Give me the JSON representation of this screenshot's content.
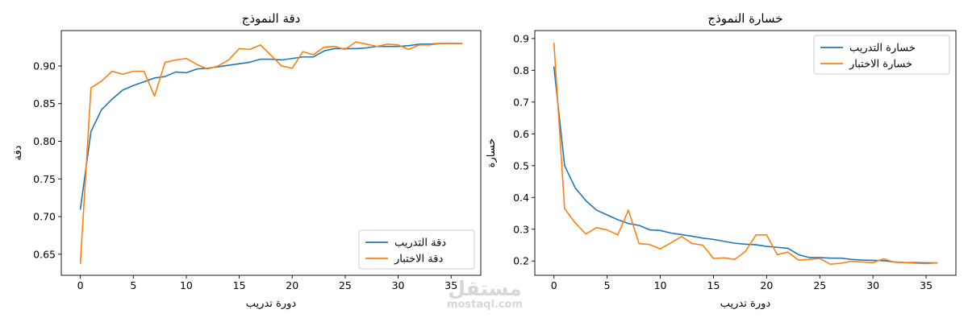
{
  "chart_data": [
    {
      "type": "line",
      "title": "دقة النموذج",
      "xlabel": "دورة تدريب",
      "ylabel": "دقة",
      "xlim": [
        -1.8,
        37.8
      ],
      "ylim": [
        0.622,
        0.947
      ],
      "xticks": [
        0,
        5,
        10,
        15,
        20,
        25,
        30,
        35
      ],
      "yticks": [
        0.65,
        0.7,
        0.75,
        0.8,
        0.85,
        0.9
      ],
      "ytick_labels": [
        "0.65",
        "0.70",
        "0.75",
        "0.80",
        "0.85",
        "0.90"
      ],
      "legend_position": "lower-right",
      "grid": false,
      "x": [
        0,
        1,
        2,
        3,
        4,
        5,
        6,
        7,
        8,
        9,
        10,
        11,
        12,
        13,
        14,
        15,
        16,
        17,
        18,
        19,
        20,
        21,
        22,
        23,
        24,
        25,
        26,
        27,
        28,
        29,
        30,
        31,
        32,
        33,
        34,
        35,
        36
      ],
      "series": [
        {
          "name": "دقة التدريب",
          "color": "#1f77b4",
          "values": [
            0.71,
            0.813,
            0.842,
            0.856,
            0.868,
            0.874,
            0.879,
            0.884,
            0.886,
            0.892,
            0.891,
            0.896,
            0.897,
            0.899,
            0.901,
            0.903,
            0.905,
            0.909,
            0.909,
            0.908,
            0.91,
            0.912,
            0.912,
            0.92,
            0.923,
            0.923,
            0.923,
            0.924,
            0.926,
            0.926,
            0.926,
            0.927,
            0.929,
            0.929,
            0.93,
            0.93,
            0.93
          ]
        },
        {
          "name": "دقة الاختبار",
          "color": "#ff7f0e",
          "values": [
            0.638,
            0.871,
            0.88,
            0.893,
            0.889,
            0.893,
            0.893,
            0.86,
            0.905,
            0.908,
            0.91,
            0.902,
            0.896,
            0.9,
            0.908,
            0.923,
            0.922,
            0.928,
            0.914,
            0.9,
            0.897,
            0.919,
            0.915,
            0.925,
            0.926,
            0.922,
            0.932,
            0.929,
            0.926,
            0.929,
            0.928,
            0.922,
            0.928,
            0.928,
            0.93,
            0.93,
            0.93
          ]
        }
      ]
    },
    {
      "type": "line",
      "title": "خسارة النموذج",
      "xlabel": "دورة تدريب",
      "ylabel": "خسارة",
      "xlim": [
        -1.8,
        37.8
      ],
      "ylim": [
        0.155,
        0.925
      ],
      "xticks": [
        0,
        5,
        10,
        15,
        20,
        25,
        30,
        35
      ],
      "yticks": [
        0.2,
        0.3,
        0.4,
        0.5,
        0.6,
        0.7,
        0.8,
        0.9
      ],
      "ytick_labels": [
        "0.2",
        "0.3",
        "0.4",
        "0.5",
        "0.6",
        "0.7",
        "0.8",
        "0.9"
      ],
      "legend_position": "top-right",
      "grid": false,
      "x": [
        0,
        1,
        2,
        3,
        4,
        5,
        6,
        7,
        8,
        9,
        10,
        11,
        12,
        13,
        14,
        15,
        16,
        17,
        18,
        19,
        20,
        21,
        22,
        23,
        24,
        25,
        26,
        27,
        28,
        29,
        30,
        31,
        32,
        33,
        34,
        35,
        36
      ],
      "series": [
        {
          "name": "خسارة التدريب",
          "color": "#1f77b4",
          "values": [
            0.81,
            0.5,
            0.43,
            0.39,
            0.36,
            0.345,
            0.33,
            0.318,
            0.312,
            0.298,
            0.296,
            0.288,
            0.283,
            0.278,
            0.272,
            0.268,
            0.262,
            0.256,
            0.253,
            0.251,
            0.246,
            0.243,
            0.24,
            0.22,
            0.211,
            0.211,
            0.209,
            0.209,
            0.205,
            0.203,
            0.202,
            0.201,
            0.197,
            0.195,
            0.195,
            0.194,
            0.194
          ]
        },
        {
          "name": "خسارة الاختبار",
          "color": "#ff7f0e",
          "values": [
            0.885,
            0.365,
            0.32,
            0.285,
            0.305,
            0.298,
            0.282,
            0.36,
            0.255,
            0.252,
            0.238,
            0.257,
            0.277,
            0.255,
            0.25,
            0.208,
            0.21,
            0.205,
            0.23,
            0.282,
            0.282,
            0.22,
            0.228,
            0.203,
            0.205,
            0.208,
            0.19,
            0.193,
            0.199,
            0.197,
            0.195,
            0.207,
            0.196,
            0.195,
            0.193,
            0.192,
            0.194
          ]
        }
      ]
    }
  ],
  "watermark": {
    "main": "مستقل",
    "sub": "mostaql.com"
  }
}
